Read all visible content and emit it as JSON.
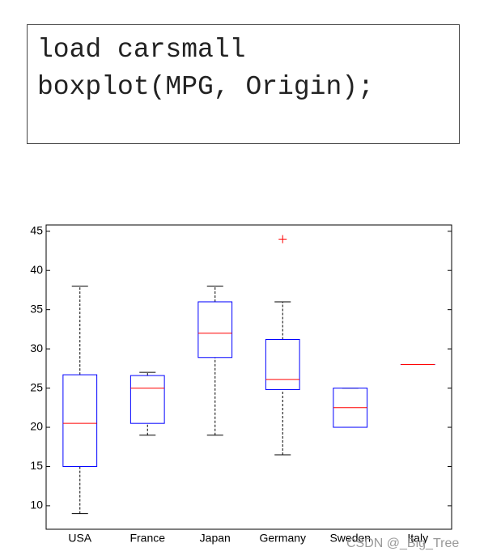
{
  "code": [
    "load carsmall",
    "boxplot(MPG, Origin);"
  ],
  "watermark": "CSDN @_Big_Tree",
  "chart_data": {
    "type": "boxplot",
    "categories": [
      "USA",
      "France",
      "Japan",
      "Germany",
      "Sweden",
      "Italy"
    ],
    "boxes": [
      {
        "min": 9,
        "q1": 15,
        "median": 20.5,
        "q3": 26.7,
        "max": 38
      },
      {
        "min": 19,
        "q1": 20.5,
        "median": 25,
        "q3": 26.6,
        "max": 27
      },
      {
        "min": 19,
        "q1": 28.9,
        "median": 32,
        "q3": 36,
        "max": 38
      },
      {
        "min": 16.5,
        "q1": 24.8,
        "median": 26.1,
        "q3": 31.2,
        "max": 36,
        "outliers": [
          44
        ]
      },
      {
        "min": 20,
        "q1": 20,
        "median": 22.5,
        "q3": 25,
        "max": 25
      },
      {
        "min": 28,
        "q1": 28,
        "median": 28,
        "q3": 28,
        "max": 28
      }
    ],
    "box_color": "#0000ff",
    "median_color": "#ff0000",
    "whisker_color": "#000000",
    "outlier_color": "#ff0000",
    "ylim": [
      7,
      45.8
    ],
    "yticks": [
      10,
      15,
      20,
      25,
      30,
      35,
      40,
      45
    ]
  }
}
